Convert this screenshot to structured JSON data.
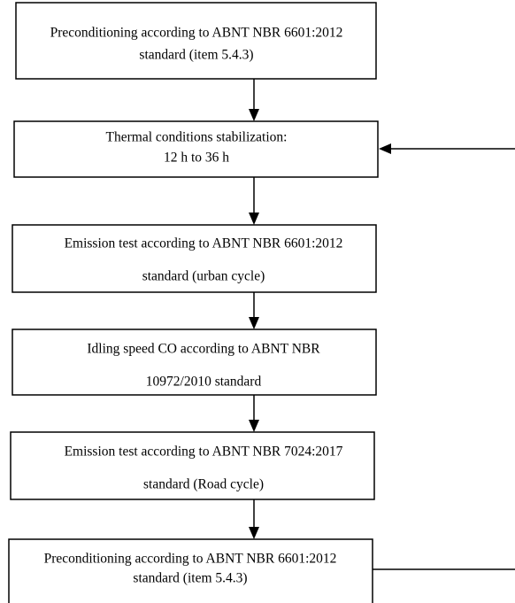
{
  "nodes": [
    {
      "lines": [
        "Preconditioning according to ABNT NBR 6601:2012",
        "standard (item 5.4.3)"
      ]
    },
    {
      "lines": [
        "Thermal conditions stabilization:",
        "12 h to 36 h"
      ]
    },
    {
      "lines": [
        "Emission test according to ABNT NBR 6601:2012",
        "standard (urban cycle)"
      ]
    },
    {
      "lines": [
        "Idling speed CO according to ABNT NBR",
        "10972/2010 standard"
      ]
    },
    {
      "lines": [
        "Emission test according to ABNT NBR 7024:2017",
        "standard (Road cycle)"
      ]
    },
    {
      "lines": [
        "Preconditioning according to ABNT NBR 6601:2012",
        "standard (item 5.4.3)"
      ]
    }
  ]
}
